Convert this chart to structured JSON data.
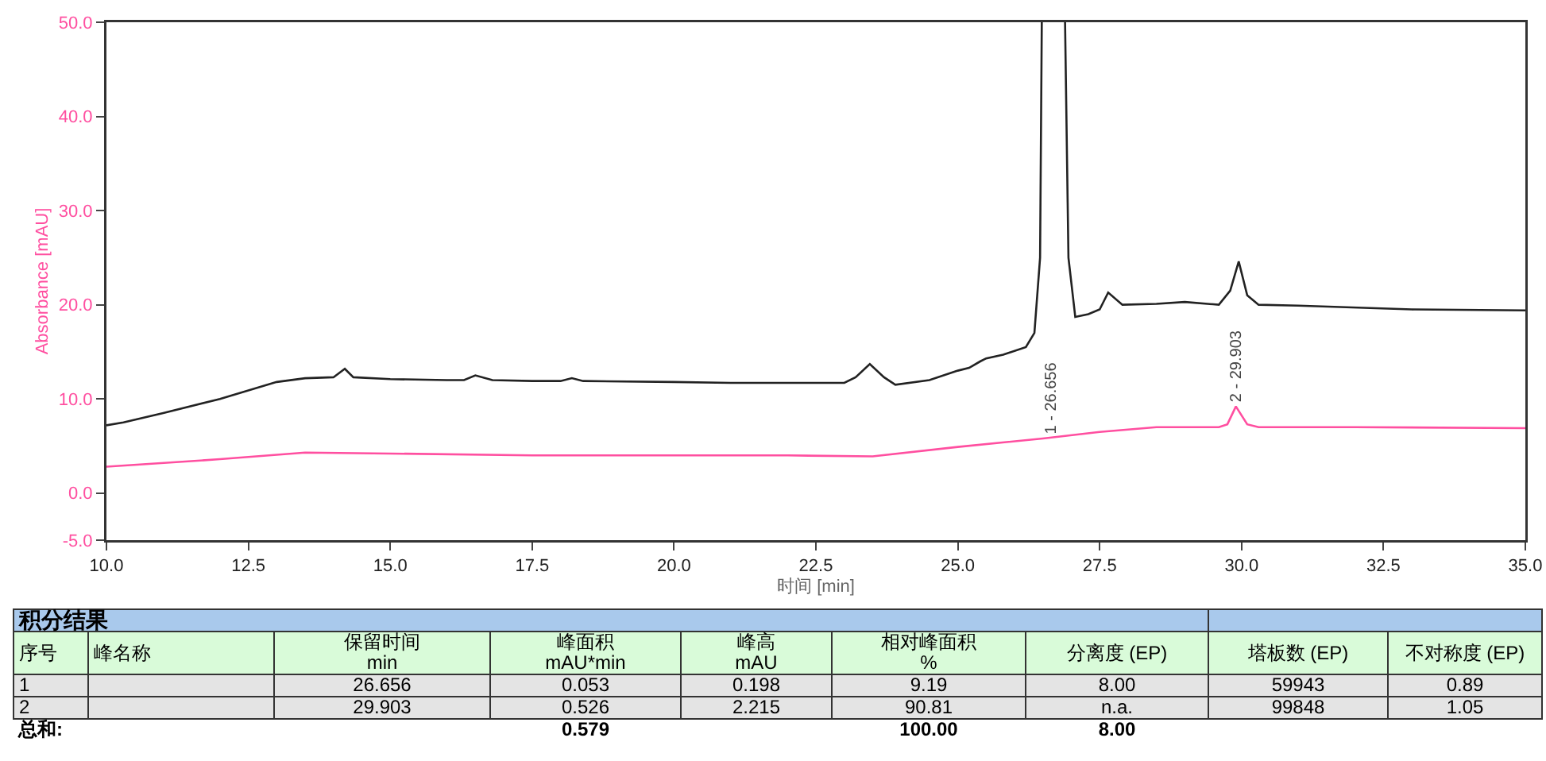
{
  "chart_data": {
    "type": "line",
    "xlabel": "时间 [min]",
    "ylabel": "Absorbance [mAU]",
    "xlim": [
      10,
      35
    ],
    "xticks": [
      {
        "value": 10,
        "label": "10.0"
      },
      {
        "value": 12.5,
        "label": "12.5"
      },
      {
        "value": 15,
        "label": "15.0"
      },
      {
        "value": 17.5,
        "label": "17.5"
      },
      {
        "value": 20,
        "label": "20.0"
      },
      {
        "value": 22.5,
        "label": "22.5"
      },
      {
        "value": 25,
        "label": "25.0"
      },
      {
        "value": 27.5,
        "label": "27.5"
      },
      {
        "value": 30,
        "label": "30.0"
      },
      {
        "value": 32.5,
        "label": "32.5"
      },
      {
        "value": 35,
        "label": "35.0"
      }
    ],
    "ylim": [
      -5,
      50
    ],
    "yticks": [
      {
        "value": -5,
        "label": "-5.0"
      },
      {
        "value": 0,
        "label": "0.0"
      },
      {
        "value": 10,
        "label": "10.0"
      },
      {
        "value": 20,
        "label": "20.0"
      },
      {
        "value": 30,
        "label": "30.0"
      },
      {
        "value": 40,
        "label": "40.0"
      },
      {
        "value": 50,
        "label": "50.0"
      }
    ],
    "grid": false,
    "marker": "none",
    "line_style": "solid",
    "series": [
      {
        "color": "#222222",
        "x": [
          10,
          10.3,
          11,
          12,
          13,
          13.5,
          14,
          14.2,
          14.35,
          15,
          16,
          16.3,
          16.5,
          16.8,
          17.5,
          18,
          18.2,
          18.4,
          20,
          21,
          22,
          23,
          23.2,
          23.45,
          23.7,
          23.9,
          24.5,
          25,
          25.2,
          25.4,
          25.5,
          25.8,
          26.2,
          26.35,
          26.45,
          26.48,
          26.68,
          26.89,
          26.95,
          27.07,
          27.3,
          27.5,
          27.65,
          27.9,
          28.5,
          29,
          29.6,
          29.8,
          29.95,
          30.1,
          30.3,
          31,
          33,
          35
        ],
        "values": [
          7.2,
          7.5,
          8.5,
          10,
          11.8,
          12.2,
          12.3,
          13.2,
          12.3,
          12.1,
          12,
          12,
          12.5,
          12,
          11.9,
          11.9,
          12.2,
          11.9,
          11.8,
          11.7,
          11.7,
          11.7,
          12.3,
          13.7,
          12.3,
          11.5,
          12,
          13,
          13.3,
          14,
          14.3,
          14.7,
          15.5,
          17,
          25,
          50,
          null,
          50,
          25,
          18.7,
          19,
          19.5,
          21.3,
          20,
          20.1,
          20.3,
          20,
          21.5,
          24.6,
          21,
          20,
          19.9,
          19.5,
          19.4
        ]
      },
      {
        "color": "#ff4fa0",
        "x": [
          10,
          12,
          13.5,
          15,
          17.5,
          20,
          22,
          23.5,
          25,
          26.5,
          27.5,
          28.5,
          29.6,
          29.75,
          29.9,
          30.1,
          30.3,
          32,
          35
        ],
        "values": [
          2.8,
          3.6,
          4.3,
          4.2,
          4,
          4,
          4,
          3.9,
          4.9,
          5.8,
          6.5,
          7,
          7,
          7.3,
          9.2,
          7.3,
          7,
          7,
          6.9
        ]
      }
    ],
    "annotations": [
      {
        "text": "1 - 26.656",
        "x": 26.656,
        "y": 6
      },
      {
        "text": "2 - 29.903",
        "x": 29.903,
        "y": 9.4
      },
      "积分结果",
      "序号",
      "峰名称",
      "保留时间\nmin",
      "峰面积\nmAU*min",
      "峰高\nmAU",
      "相对峰面积\n%",
      "分离度 (EP)",
      "塔板数 (EP)",
      "不对称度 (EP)",
      "1",
      "26.656",
      "0.053",
      "0.198",
      "9.19",
      "8.00",
      "59943",
      "0.89",
      "2",
      "29.903",
      "0.526",
      "2.215",
      "90.81",
      "n.a.",
      "99848",
      "1.05",
      "总和:",
      "0.579",
      "100.00",
      "8.00"
    ]
  }
}
